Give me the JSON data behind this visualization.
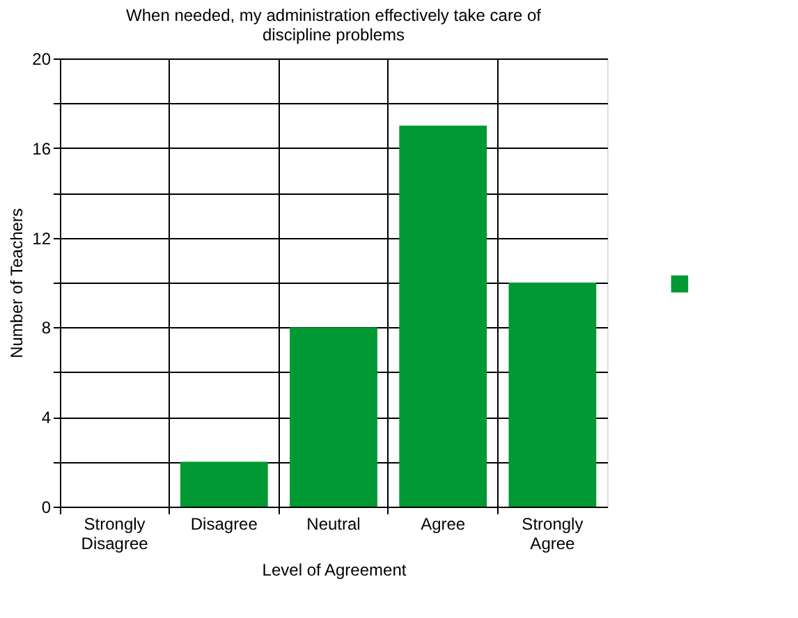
{
  "chart_data": {
    "type": "bar",
    "title": "When needed, my administration effectively take care of discipline problems",
    "xlabel": "Level of Agreement",
    "ylabel": "Number of Teachers",
    "categories": [
      "Strongly Disagree",
      "Disagree",
      "Neutral",
      "Agree",
      "Strongly Agree"
    ],
    "series": [
      {
        "color": "#009933",
        "values": [
          0,
          2,
          8,
          17,
          10
        ]
      }
    ],
    "ylim": [
      0,
      20
    ],
    "yticks": [
      0,
      {
        "value": 2,
        "label": null
      },
      4,
      {
        "value": 6,
        "label": null
      },
      8,
      {
        "value": 10,
        "label": null
      },
      12,
      {
        "value": 14,
        "label": null
      },
      16,
      {
        "value": 18,
        "label": null
      },
      20
    ],
    "grid": true
  }
}
